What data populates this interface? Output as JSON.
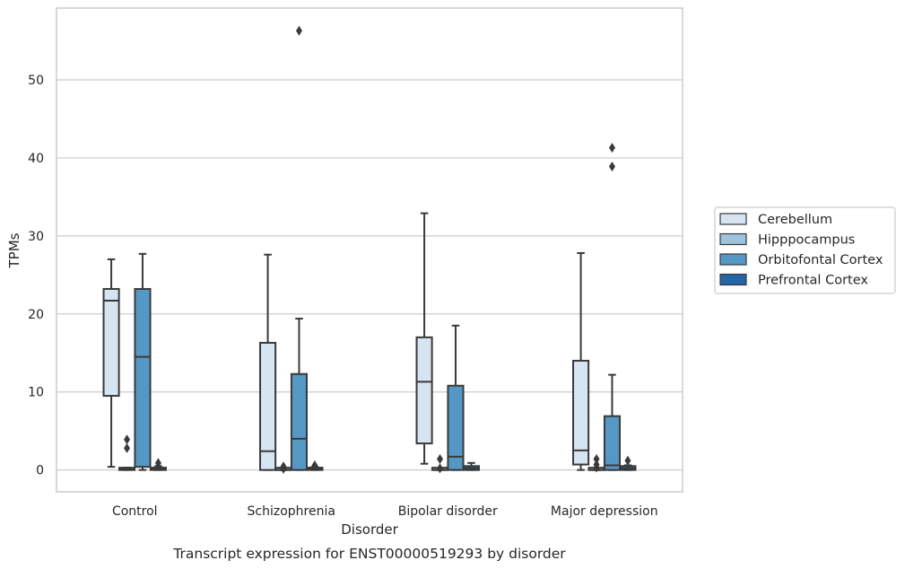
{
  "caption": "Transcript expression for ENST00000519293 by disorder",
  "chart_data": {
    "type": "box",
    "xlabel": "Disorder",
    "ylabel": "TPMs",
    "ylim": [
      -2.8,
      59.2
    ],
    "yticks": [
      0,
      10,
      20,
      30,
      40,
      50
    ],
    "grid": "horizontal",
    "legend_position": "right",
    "categories": [
      "Control",
      "Schizophrenia",
      "Bipolar disorder",
      "Major depression"
    ],
    "series": [
      {
        "name": "Cerebellum",
        "color": "#d7e4f1",
        "boxes": [
          {
            "whislo": 0.4,
            "q1": 9.5,
            "med": 21.7,
            "q3": 23.2,
            "whishi": 27.0,
            "fliers": []
          },
          {
            "whislo": 0.0,
            "q1": 0.0,
            "med": 2.4,
            "q3": 16.3,
            "whishi": 27.6,
            "fliers": []
          },
          {
            "whislo": 0.8,
            "q1": 3.4,
            "med": 11.3,
            "q3": 17.0,
            "whishi": 32.9,
            "fliers": []
          },
          {
            "whislo": 0.0,
            "q1": 0.7,
            "med": 2.5,
            "q3": 14.0,
            "whishi": 27.8,
            "fliers": []
          }
        ]
      },
      {
        "name": "Hipppocampus",
        "color": "#9dc3de",
        "boxes": [
          {
            "whislo": 0.0,
            "q1": 0.0,
            "med": 0.1,
            "q3": 0.25,
            "whishi": 0.3,
            "fliers": [
              2.8,
              3.9
            ]
          },
          {
            "whislo": 0.0,
            "q1": 0.0,
            "med": 0.0,
            "q3": 0.0,
            "whishi": 0.0,
            "fliers": [
              0.15,
              0.45
            ]
          },
          {
            "whislo": 0.0,
            "q1": 0.0,
            "med": 0.0,
            "q3": 0.0,
            "whishi": 0.0,
            "fliers": [
              0.2,
              1.4
            ]
          },
          {
            "whislo": 0.0,
            "q1": 0.0,
            "med": 0.0,
            "q3": 0.0,
            "whishi": 0.0,
            "fliers": [
              0.3,
              0.7,
              1.4
            ]
          }
        ]
      },
      {
        "name": "Orbitofontal Cortex",
        "color": "#5597c5",
        "boxes": [
          {
            "whislo": 0.0,
            "q1": 0.4,
            "med": 14.5,
            "q3": 23.2,
            "whishi": 27.7,
            "fliers": []
          },
          {
            "whislo": 0.0,
            "q1": 0.0,
            "med": 4.0,
            "q3": 12.3,
            "whishi": 19.4,
            "fliers": [
              56.3
            ]
          },
          {
            "whislo": 0.0,
            "q1": 0.0,
            "med": 1.7,
            "q3": 10.8,
            "whishi": 18.5,
            "fliers": []
          },
          {
            "whislo": 0.0,
            "q1": 0.0,
            "med": 0.6,
            "q3": 6.9,
            "whishi": 12.2,
            "fliers": [
              38.9,
              41.3
            ]
          }
        ]
      },
      {
        "name": "Prefrontal Cortex",
        "color": "#2465a8",
        "boxes": [
          {
            "whislo": 0.0,
            "q1": 0.0,
            "med": 0.1,
            "q3": 0.3,
            "whishi": 0.5,
            "fliers": [
              0.9
            ]
          },
          {
            "whislo": 0.0,
            "q1": 0.0,
            "med": 0.1,
            "q3": 0.3,
            "whishi": 0.4,
            "fliers": [
              0.6
            ]
          },
          {
            "whislo": 0.0,
            "q1": 0.0,
            "med": 0.2,
            "q3": 0.5,
            "whishi": 0.9,
            "fliers": []
          },
          {
            "whislo": 0.0,
            "q1": 0.0,
            "med": 0.2,
            "q3": 0.5,
            "whishi": 0.6,
            "fliers": [
              1.2
            ]
          }
        ]
      }
    ]
  }
}
